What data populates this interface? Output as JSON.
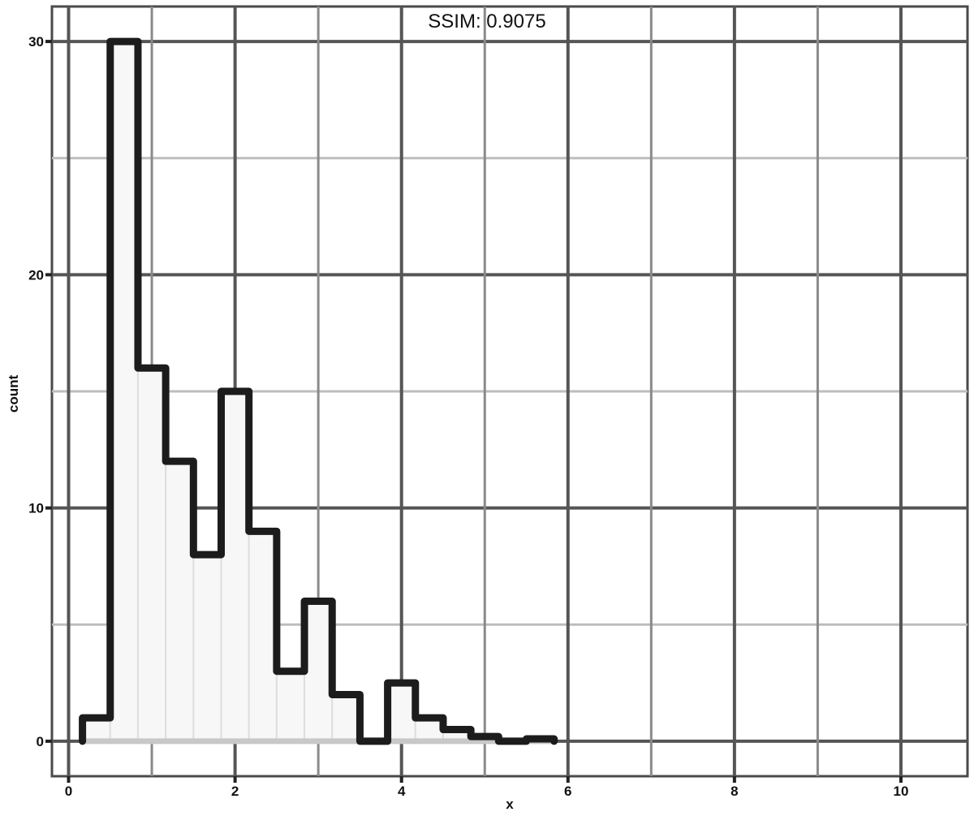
{
  "chart_data": {
    "type": "histogram",
    "title": "SSIM: 0.9075",
    "xlabel": "x",
    "ylabel": "count",
    "xlim": [
      -0.2,
      10.8
    ],
    "ylim": [
      -1.5,
      31.5
    ],
    "x_ticks": [
      {
        "value": 0,
        "label": "0"
      },
      {
        "value": 2,
        "label": "2"
      },
      {
        "value": 4,
        "label": "4"
      },
      {
        "value": 6,
        "label": "6"
      },
      {
        "value": 8,
        "label": "8"
      },
      {
        "value": 10,
        "label": "10"
      }
    ],
    "y_ticks": [
      {
        "value": 0,
        "label": "0"
      },
      {
        "value": 10,
        "label": "10"
      },
      {
        "value": 20,
        "label": "20"
      },
      {
        "value": 30,
        "label": "30"
      }
    ],
    "bin_width": 0.3333,
    "bins": [
      {
        "start": 0.1667,
        "count": 1
      },
      {
        "start": 0.5,
        "count": 30
      },
      {
        "start": 0.8333,
        "count": 16
      },
      {
        "start": 1.1667,
        "count": 12
      },
      {
        "start": 1.5,
        "count": 8
      },
      {
        "start": 1.8333,
        "count": 15
      },
      {
        "start": 2.1667,
        "count": 9
      },
      {
        "start": 2.5,
        "count": 3
      },
      {
        "start": 2.8333,
        "count": 6
      },
      {
        "start": 3.1667,
        "count": 2
      },
      {
        "start": 3.5,
        "count": 0
      },
      {
        "start": 3.8333,
        "count": 2.5
      },
      {
        "start": 4.1667,
        "count": 1
      },
      {
        "start": 4.5,
        "count": 0.5
      },
      {
        "start": 4.8333,
        "count": 0.2
      },
      {
        "start": 5.1667,
        "count": 0
      },
      {
        "start": 5.5,
        "count": 0.1
      }
    ],
    "grid": true,
    "legend": "none",
    "colors": {
      "fill": "#f7f7f7",
      "outline": "#1c1c1c",
      "grid_major": "#555555",
      "grid_minor": "#8a8a8a"
    }
  }
}
